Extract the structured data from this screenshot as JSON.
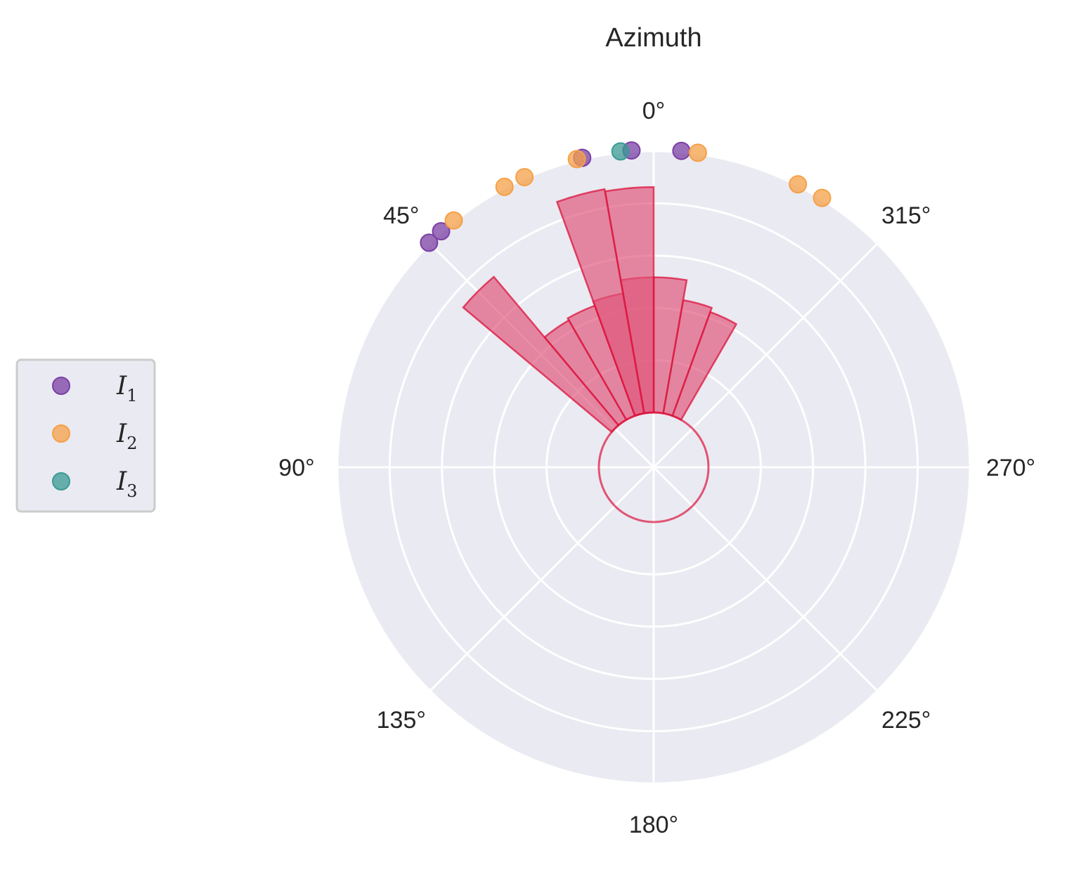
{
  "chart_data": {
    "type": "polar-bar-scatter",
    "title": "Azimuth",
    "angle_direction": "counterclockwise",
    "zero_location": "top",
    "grid": true,
    "theta_tick_labels": [
      "0°",
      "45°",
      "90°",
      "135°",
      "180°",
      "225°",
      "270°",
      "315°"
    ],
    "theta_ticks_deg": [
      0,
      45,
      90,
      135,
      180,
      225,
      270,
      315
    ],
    "radial_rings": 5,
    "inner_hole": true,
    "colors": {
      "background": "#eaeaf2",
      "grid": "#ffffff",
      "bars_fill": "#e0557a",
      "bars_edge": "#dc143c",
      "I1": "#7b3fa4",
      "I2": "#f5a047",
      "I3": "#3a9a94"
    },
    "bars": {
      "bin_width_deg": 10,
      "bins": [
        {
          "center_deg": 335,
          "height": 2.45
        },
        {
          "center_deg": 345,
          "height": 2.55
        },
        {
          "center_deg": 355,
          "height": 3.0
        },
        {
          "center_deg": 5,
          "height": 3.0
        },
        {
          "center_deg": 15,
          "height": 2.7
        },
        {
          "center_deg": 25,
          "height": 2.6
        },
        {
          "center_deg": 35,
          "height": 2.55
        },
        {
          "center_deg": 45,
          "height": 4.3
        },
        {
          "center_deg": 5,
          "height": 5.0
        },
        {
          "center_deg": 15,
          "height": 5.05
        }
      ]
    },
    "legend": {
      "position": "left",
      "entries": [
        {
          "label": "I",
          "sub": "1",
          "color_key": "I1"
        },
        {
          "label": "I",
          "sub": "2",
          "color_key": "I2"
        },
        {
          "label": "I",
          "sub": "3",
          "color_key": "I3"
        }
      ]
    },
    "series": [
      {
        "key": "I1",
        "angles_deg": [
          355,
          4,
          13,
          45,
          42
        ]
      },
      {
        "key": "I2",
        "angles_deg": [
          352,
          333,
          328,
          14,
          24,
          28,
          39
        ]
      },
      {
        "key": "I3",
        "angles_deg": [
          6
        ]
      }
    ]
  }
}
